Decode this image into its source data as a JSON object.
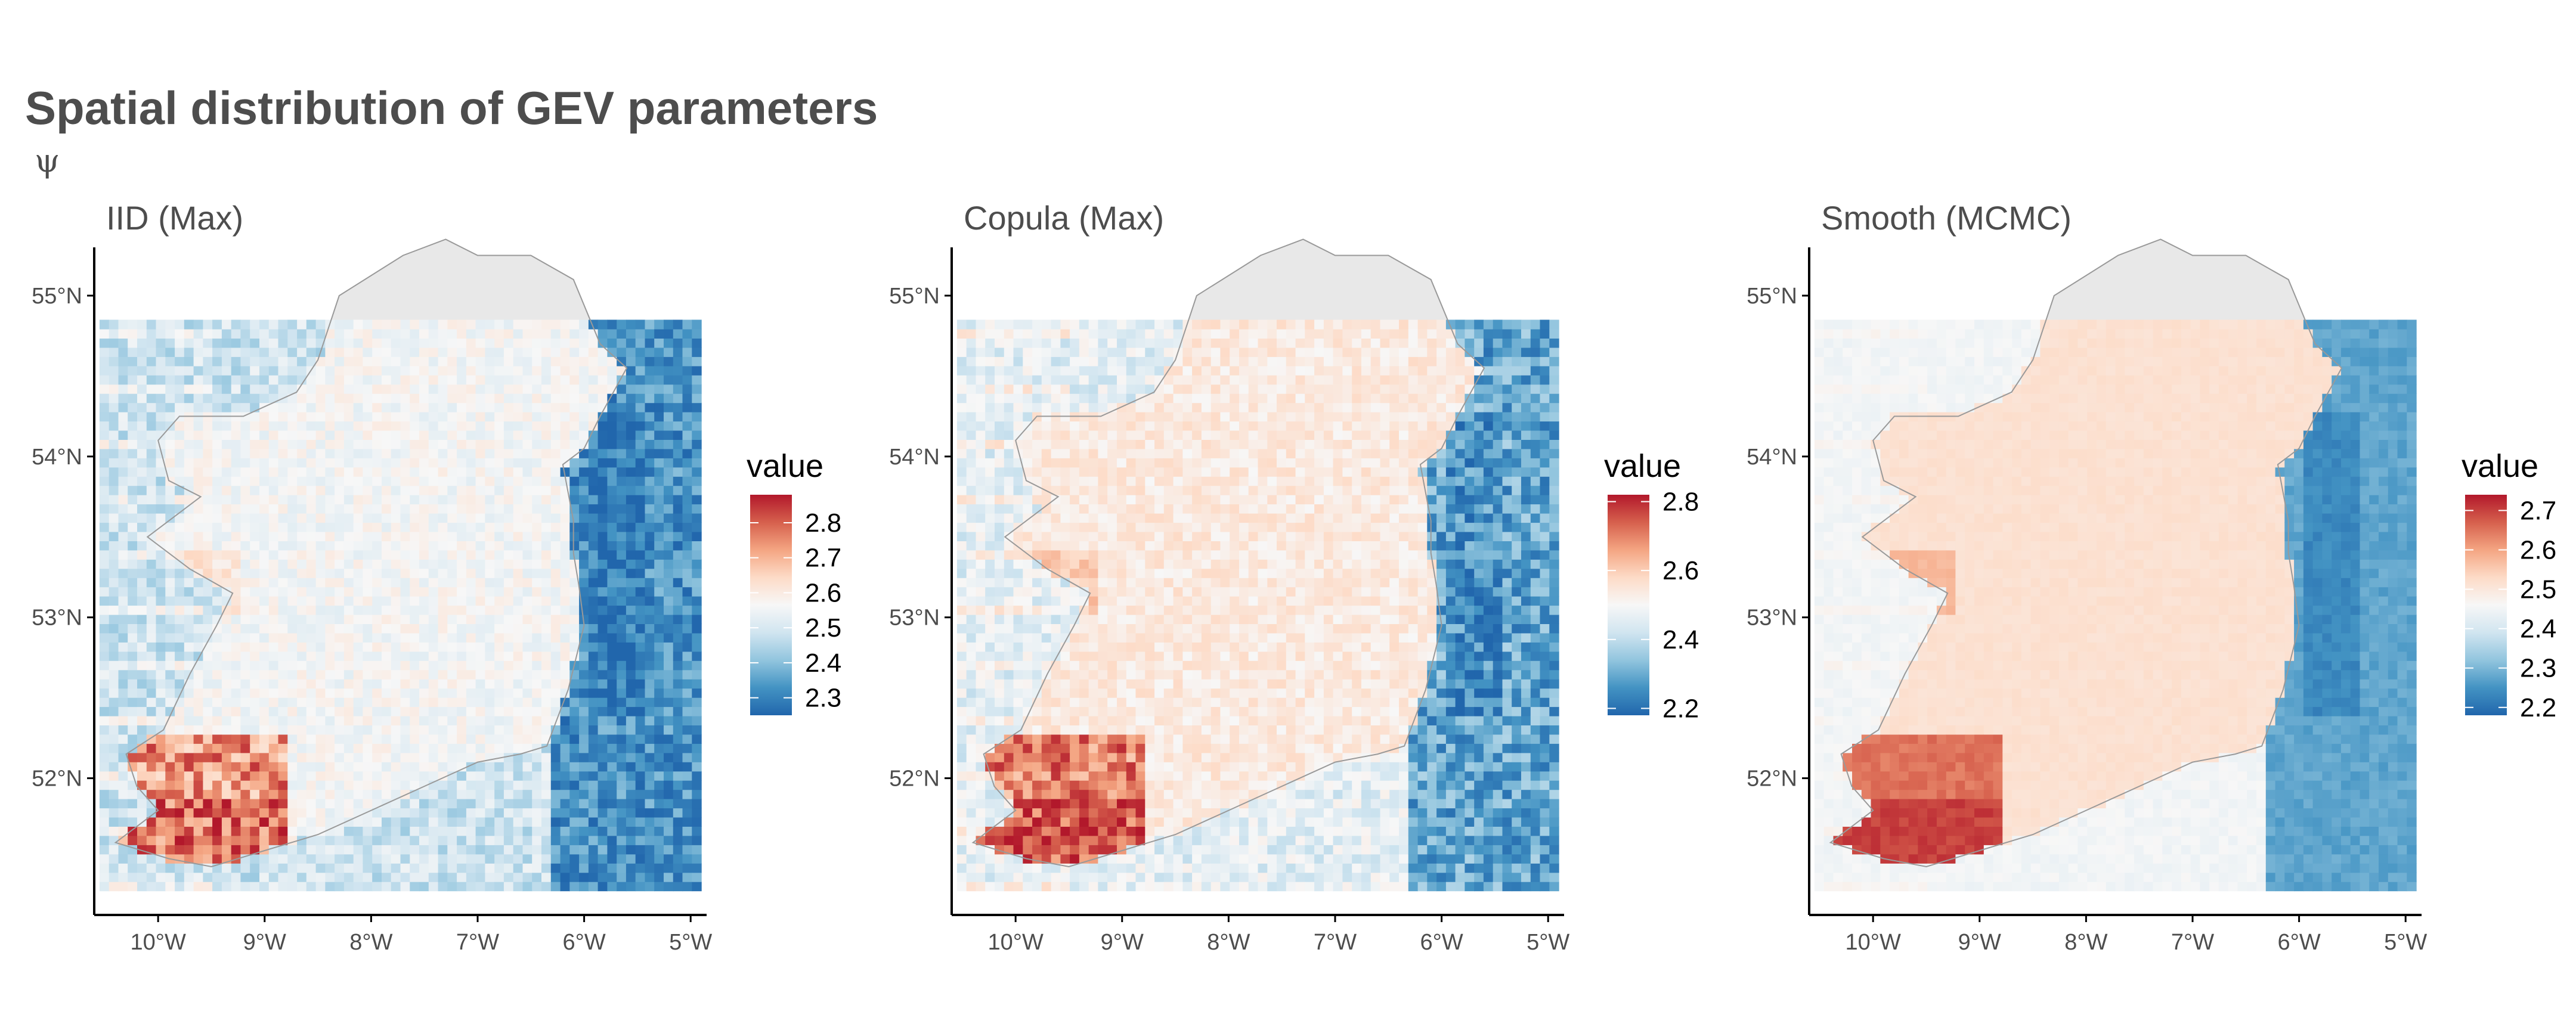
{
  "figure": {
    "title": "Spatial distribution of GEV parameters",
    "subtitle": "ψ"
  },
  "chart_data": [
    {
      "type": "heatmap",
      "title": "IID (Max)",
      "legend_title": "value",
      "legend_placement": "right",
      "xlim": [
        -10.6,
        -4.85
      ],
      "ylim": [
        51.15,
        55.3
      ],
      "grid_extent": {
        "lon": [
          -10.55,
          -4.9
        ],
        "lat": [
          51.3,
          54.85
        ]
      },
      "x_ticks": [
        {
          "value": -10,
          "label": "10°W"
        },
        {
          "value": -9,
          "label": "9°W"
        },
        {
          "value": -8,
          "label": "8°W"
        },
        {
          "value": -7,
          "label": "7°W"
        },
        {
          "value": -6,
          "label": "6°W"
        },
        {
          "value": -5,
          "label": "5°W"
        }
      ],
      "y_ticks": [
        {
          "value": 52,
          "label": "52°N"
        },
        {
          "value": 53,
          "label": "53°N"
        },
        {
          "value": 54,
          "label": "54°N"
        },
        {
          "value": 55,
          "label": "55°N"
        }
      ],
      "colorbar": {
        "min": 2.25,
        "max": 2.88,
        "ticks": [
          2.3,
          2.4,
          2.5,
          2.6,
          2.7,
          2.8
        ],
        "tick_labels": [
          "2.3",
          "2.4",
          "2.5",
          "2.6",
          "2.7",
          "2.8"
        ]
      },
      "value_ranges": {
        "sea_east": [
          2.25,
          2.4
        ],
        "sea_west": [
          2.42,
          2.55
        ],
        "land": [
          2.52,
          2.6
        ],
        "southwest_land": [
          2.62,
          2.85
        ]
      },
      "grid": false
    },
    {
      "type": "heatmap",
      "title": "Copula (Max)",
      "legend_title": "value",
      "legend_placement": "right",
      "xlim": [
        -10.6,
        -4.85
      ],
      "ylim": [
        51.15,
        55.3
      ],
      "grid_extent": {
        "lon": [
          -10.55,
          -4.9
        ],
        "lat": [
          51.3,
          54.85
        ]
      },
      "x_ticks": [
        {
          "value": -10,
          "label": "10°W"
        },
        {
          "value": -9,
          "label": "9°W"
        },
        {
          "value": -8,
          "label": "8°W"
        },
        {
          "value": -7,
          "label": "7°W"
        },
        {
          "value": -6,
          "label": "6°W"
        },
        {
          "value": -5,
          "label": "5°W"
        }
      ],
      "y_ticks": [
        {
          "value": 52,
          "label": "52°N"
        },
        {
          "value": 53,
          "label": "53°N"
        },
        {
          "value": 54,
          "label": "54°N"
        },
        {
          "value": 55,
          "label": "55°N"
        }
      ],
      "colorbar": {
        "min": 2.18,
        "max": 2.82,
        "ticks": [
          2.2,
          2.4,
          2.6,
          2.8
        ],
        "tick_labels": [
          "2.2",
          "2.4",
          "2.6",
          "2.8"
        ]
      },
      "value_ranges": {
        "sea_east": [
          2.2,
          2.38
        ],
        "sea_west": [
          2.4,
          2.52
        ],
        "land": [
          2.5,
          2.58
        ],
        "southwest_land": [
          2.6,
          2.8
        ]
      },
      "grid": false
    },
    {
      "type": "heatmap",
      "title": "Smooth (MCMC)",
      "legend_title": "value",
      "legend_placement": "right",
      "xlim": [
        -10.6,
        -4.85
      ],
      "ylim": [
        51.15,
        55.3
      ],
      "grid_extent": {
        "lon": [
          -10.55,
          -4.9
        ],
        "lat": [
          51.3,
          54.85
        ]
      },
      "x_ticks": [
        {
          "value": -10,
          "label": "10°W"
        },
        {
          "value": -9,
          "label": "9°W"
        },
        {
          "value": -8,
          "label": "8°W"
        },
        {
          "value": -7,
          "label": "7°W"
        },
        {
          "value": -6,
          "label": "6°W"
        },
        {
          "value": -5,
          "label": "5°W"
        }
      ],
      "y_ticks": [
        {
          "value": 52,
          "label": "52°N"
        },
        {
          "value": 53,
          "label": "53°N"
        },
        {
          "value": 54,
          "label": "54°N"
        },
        {
          "value": 55,
          "label": "55°N"
        }
      ],
      "colorbar": {
        "min": 2.18,
        "max": 2.74,
        "ticks": [
          2.2,
          2.3,
          2.4,
          2.5,
          2.6,
          2.7
        ],
        "tick_labels": [
          "2.2",
          "2.3",
          "2.4",
          "2.5",
          "2.6",
          "2.7"
        ]
      },
      "value_ranges": {
        "sea_east": [
          2.2,
          2.35
        ],
        "sea_west": [
          2.4,
          2.5
        ],
        "land": [
          2.48,
          2.55
        ],
        "southwest_land": [
          2.58,
          2.72
        ]
      },
      "grid": false
    }
  ],
  "colors": {
    "scale": [
      "#2166ac",
      "#4393c3",
      "#92c5de",
      "#d1e5f0",
      "#f7f7f7",
      "#fddbc7",
      "#f4a582",
      "#d6604d",
      "#b2182b"
    ],
    "axis": "#000000",
    "text": "#4d4d4d",
    "coast": "#999999",
    "land_outside_grid": "#e8e8e8"
  },
  "coastline": {
    "ireland": [
      [
        -10.4,
        51.6
      ],
      [
        -9.9,
        51.5
      ],
      [
        -9.5,
        51.45
      ],
      [
        -9.0,
        51.55
      ],
      [
        -8.5,
        51.65
      ],
      [
        -8.0,
        51.8
      ],
      [
        -7.5,
        51.95
      ],
      [
        -7.0,
        52.1
      ],
      [
        -6.6,
        52.15
      ],
      [
        -6.35,
        52.2
      ],
      [
        -6.15,
        52.55
      ],
      [
        -6.0,
        52.95
      ],
      [
        -6.05,
        53.2
      ],
      [
        -6.1,
        53.4
      ],
      [
        -6.1,
        53.6
      ],
      [
        -6.2,
        53.95
      ],
      [
        -6.0,
        54.05
      ],
      [
        -5.85,
        54.25
      ],
      [
        -5.6,
        54.55
      ],
      [
        -5.85,
        54.7
      ],
      [
        -6.1,
        55.1
      ],
      [
        -6.5,
        55.25
      ],
      [
        -7.0,
        55.25
      ],
      [
        -7.3,
        55.35
      ],
      [
        -7.7,
        55.25
      ],
      [
        -8.3,
        55.0
      ],
      [
        -8.5,
        54.6
      ],
      [
        -8.7,
        54.4
      ],
      [
        -9.2,
        54.25
      ],
      [
        -9.8,
        54.25
      ],
      [
        -10.0,
        54.1
      ],
      [
        -9.9,
        53.85
      ],
      [
        -9.6,
        53.75
      ],
      [
        -10.1,
        53.5
      ],
      [
        -9.7,
        53.3
      ],
      [
        -9.3,
        53.15
      ],
      [
        -9.45,
        52.95
      ],
      [
        -9.7,
        52.65
      ],
      [
        -9.95,
        52.3
      ],
      [
        -10.3,
        52.15
      ],
      [
        -10.2,
        51.95
      ],
      [
        -10.0,
        51.8
      ],
      [
        -10.4,
        51.6
      ]
    ]
  }
}
